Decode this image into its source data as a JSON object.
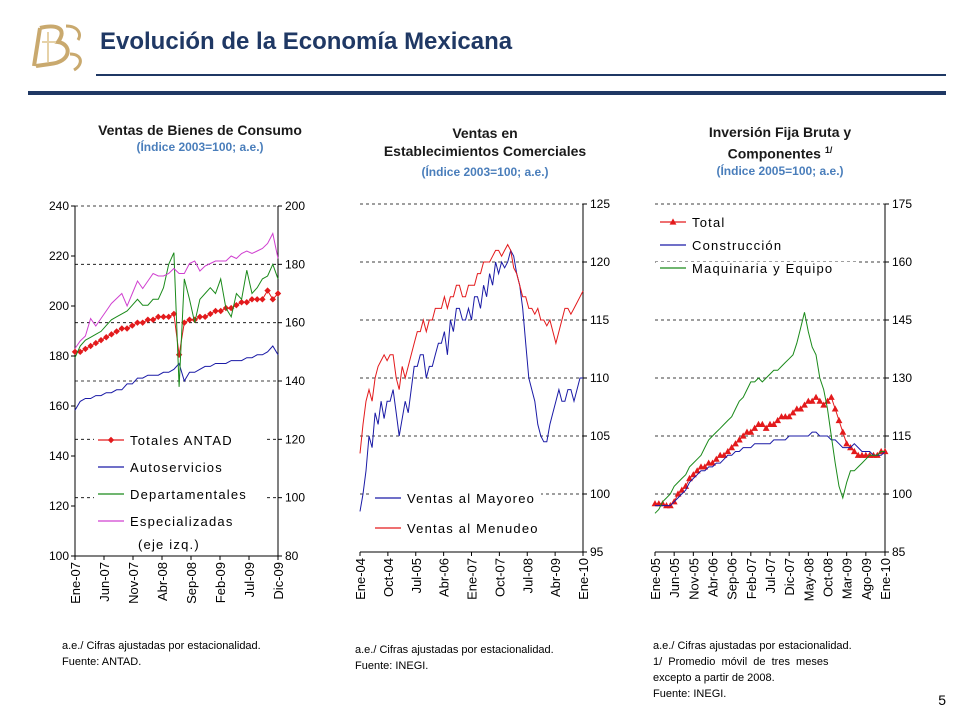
{
  "header": {
    "title": "Evolución de la Economía Mexicana"
  },
  "page_number": "5",
  "colors": {
    "navy": "#1f3864",
    "subtitle": "#4a7ebb",
    "red": "#e31a1c",
    "blue": "#1a1aa6",
    "green": "#1a8a1a",
    "magenta": "#d040d0"
  },
  "charts": [
    {
      "title": "Ventas de Bienes de Consumo",
      "subtitle": "(Índice 2003=100; a.e.)",
      "notes": [
        "a.e./ Cifras ajustadas por estacionalidad.",
        "Fuente: ANTAD."
      ]
    },
    {
      "title_line1": "Ventas en",
      "title_line2": "Establecimientos Comerciales",
      "subtitle": "(Índice 2003=100; a.e.)",
      "notes": [
        "a.e./ Cifras ajustadas por estacionalidad.",
        "Fuente: INEGI."
      ]
    },
    {
      "title_line1": "Inversión Fija Bruta y",
      "title_line2": "Componentes",
      "title_sup": "1/",
      "subtitle": "(Índice 2005=100; a.e.)",
      "notes": [
        "a.e./ Cifras ajustadas por estacionalidad.",
        "1/  Promedio  móvil  de  tres  meses",
        "excepto a partir de 2008.",
        "Fuente: INEGI."
      ]
    }
  ],
  "chart_data": [
    {
      "type": "line",
      "title": "Ventas de Bienes de Consumo",
      "x_tick_labels": [
        "Ene-07",
        "Jun-07",
        "Nov-07",
        "Abr-08",
        "Sep-08",
        "Feb-09",
        "Jul-09",
        "Dic-09"
      ],
      "n_points": 40,
      "y_left": {
        "ticks": [
          "240",
          "220",
          "200",
          "180",
          "160",
          "140",
          "120",
          "100"
        ],
        "ylim": [
          100,
          240
        ]
      },
      "y_right": {
        "ticks": [
          "200",
          "180",
          "160",
          "140",
          "120",
          "100",
          "80"
        ],
        "ylim": [
          80,
          200
        ]
      },
      "legend": [
        "Totales ANTAD",
        "Autoservicios",
        "Departamentales",
        "Especializadas",
        "(eje izq.)"
      ],
      "series": [
        {
          "name": "Totales ANTAD",
          "axis": "right",
          "color": "#e31a1c",
          "marker": "diamond",
          "values": [
            150,
            150,
            151,
            152,
            153,
            154,
            155,
            156,
            157,
            158,
            158,
            159,
            160,
            160,
            161,
            161,
            162,
            162,
            162,
            163,
            149,
            160,
            161,
            161,
            162,
            162,
            163,
            164,
            164,
            165,
            165,
            166,
            167,
            167,
            168,
            168,
            168,
            171,
            168,
            170
          ]
        },
        {
          "name": "Autoservicios",
          "axis": "right",
          "color": "#1a1aa6",
          "values": [
            130,
            133,
            134,
            134,
            135,
            135,
            136,
            136,
            137,
            137,
            139,
            139,
            141,
            141,
            142,
            142,
            142,
            143,
            143,
            144,
            146,
            140,
            143,
            143,
            144,
            145,
            145,
            146,
            146,
            146,
            147,
            147,
            147,
            148,
            148,
            149,
            149,
            150,
            152,
            149
          ]
        },
        {
          "name": "Departamentales",
          "axis": "right",
          "color": "#1a8a1a",
          "values": [
            148,
            152,
            154,
            155,
            156,
            157,
            159,
            161,
            162,
            163,
            164,
            166,
            168,
            166,
            166,
            168,
            168,
            172,
            180,
            184,
            138,
            175,
            168,
            160,
            168,
            170,
            172,
            170,
            175,
            165,
            162,
            170,
            168,
            178,
            170,
            172,
            175,
            176,
            180,
            175
          ]
        },
        {
          "name": "Especializadas (eje izq.)",
          "axis": "left",
          "color": "#d040d0",
          "values": [
            183,
            186,
            188,
            195,
            192,
            195,
            198,
            201,
            203,
            205,
            200,
            205,
            210,
            207,
            210,
            213,
            212,
            212,
            213,
            215,
            213,
            213,
            217,
            218,
            214,
            216,
            217,
            218,
            218,
            218,
            220,
            219,
            221,
            222,
            221,
            222,
            223,
            225,
            229,
            219
          ]
        }
      ]
    },
    {
      "type": "line",
      "title": "Ventas en Establecimientos Comerciales",
      "x_tick_labels": [
        "Ene-04",
        "Oct-04",
        "Jul-05",
        "Abr-06",
        "Ene-07",
        "Oct-07",
        "Jul-08",
        "Abr-09",
        "Ene-10"
      ],
      "n_points": 75,
      "y_right": {
        "ticks": [
          "125",
          "120",
          "115",
          "110",
          "105",
          "100",
          "95"
        ],
        "ylim": [
          95,
          125
        ]
      },
      "legend": [
        "Ventas al Mayoreo",
        "Ventas al Menudeo"
      ],
      "series": [
        {
          "name": "Ventas al Mayoreo",
          "color": "#1a1aa6",
          "values": [
            98.5,
            100,
            102,
            105,
            104,
            107,
            106,
            108,
            106.5,
            108,
            108,
            109,
            107,
            105,
            106.5,
            108,
            107,
            109,
            111,
            111,
            112,
            112,
            110,
            111,
            111,
            112,
            113,
            113,
            114,
            112,
            115,
            114,
            116,
            116,
            115,
            115,
            116,
            115,
            117,
            117,
            116,
            118,
            117,
            119,
            118,
            120,
            119,
            120,
            119.5,
            120,
            121,
            120.5,
            119,
            118,
            116,
            113,
            110,
            109,
            108,
            106,
            105,
            104.5,
            104.5,
            106,
            107,
            108,
            109,
            108,
            108,
            109,
            109,
            108,
            109,
            110,
            110
          ]
        },
        {
          "name": "Ventas al Menudeo",
          "color": "#e31a1c",
          "values": [
            103.5,
            106,
            108,
            109,
            108,
            110,
            111,
            111.5,
            112,
            111.5,
            112,
            112,
            110,
            109,
            111,
            110,
            111,
            112,
            113,
            114,
            114,
            115,
            114,
            115,
            115,
            116,
            116,
            116,
            117,
            116,
            117,
            117,
            118,
            118,
            117,
            117,
            118,
            118,
            118,
            119,
            119,
            120,
            120,
            120,
            120.5,
            121,
            121,
            120.5,
            121,
            121.5,
            121,
            119.5,
            119,
            118,
            117,
            117,
            116,
            116,
            115.5,
            116,
            115,
            115,
            114.5,
            115,
            114,
            113,
            114,
            115,
            116,
            116,
            115.5,
            116,
            116.5,
            117,
            117.5
          ]
        }
      ]
    },
    {
      "type": "line",
      "title": "Inversión Fija Bruta y Componentes 1/",
      "x_tick_labels": [
        "Ene-05",
        "Jun-05",
        "Nov-05",
        "Abr-06",
        "Sep-06",
        "Feb-07",
        "Jul-07",
        "Dic-07",
        "May-08",
        "Oct-08",
        "Mar-09",
        "Ago-09",
        "Ene-10"
      ],
      "n_points": 61,
      "y_right": {
        "ticks": [
          "175",
          "160",
          "145",
          "130",
          "115",
          "100",
          "85"
        ],
        "ylim": [
          85,
          175
        ]
      },
      "legend": [
        "Total",
        "Construcción",
        "Maquinaria y Equipo"
      ],
      "series": [
        {
          "name": "Total",
          "color": "#e31a1c",
          "marker": "triangle",
          "values": [
            97.5,
            97.5,
            97.5,
            97,
            97,
            98,
            100,
            101,
            102,
            104,
            105,
            106,
            107,
            107,
            108,
            108,
            109,
            110,
            110,
            111,
            112,
            113,
            114,
            115,
            116,
            116,
            117,
            118,
            118,
            117,
            118,
            118,
            119,
            120,
            120,
            120,
            121,
            122,
            122,
            123,
            124,
            124,
            125,
            124,
            123,
            124,
            125,
            122,
            119,
            116,
            113,
            112,
            111,
            110,
            110,
            110,
            110,
            110,
            110,
            111,
            111
          ]
        },
        {
          "name": "Construcción",
          "color": "#1a1aa6",
          "values": [
            97,
            97,
            97,
            97,
            97,
            98,
            99,
            100,
            101,
            103,
            104,
            105,
            106,
            106,
            107,
            107,
            108,
            108,
            109,
            110,
            110,
            111,
            111,
            112,
            112,
            112,
            113,
            113,
            113,
            113,
            113,
            114,
            114,
            114,
            114,
            115,
            115,
            115,
            115,
            115,
            115,
            116,
            116,
            115,
            115,
            115,
            114,
            114,
            113,
            112,
            112,
            112,
            113,
            112,
            111,
            111,
            111,
            110,
            110,
            110,
            111
          ]
        },
        {
          "name": "Maquinaria y Equipo",
          "color": "#1a8a1a",
          "values": [
            95,
            96,
            98,
            99,
            100,
            102,
            103,
            104,
            105,
            107,
            108,
            109,
            110,
            112,
            114,
            115,
            116,
            117,
            118,
            119,
            120,
            122,
            124,
            125,
            127,
            129,
            129,
            130,
            129,
            130,
            131,
            132,
            132,
            133,
            134,
            135,
            136,
            139,
            143,
            147,
            142,
            138,
            136,
            130,
            127,
            122,
            115,
            108,
            102,
            99,
            103,
            106,
            106,
            107,
            108,
            109,
            110,
            110,
            110,
            111,
            111
          ]
        }
      ]
    }
  ]
}
